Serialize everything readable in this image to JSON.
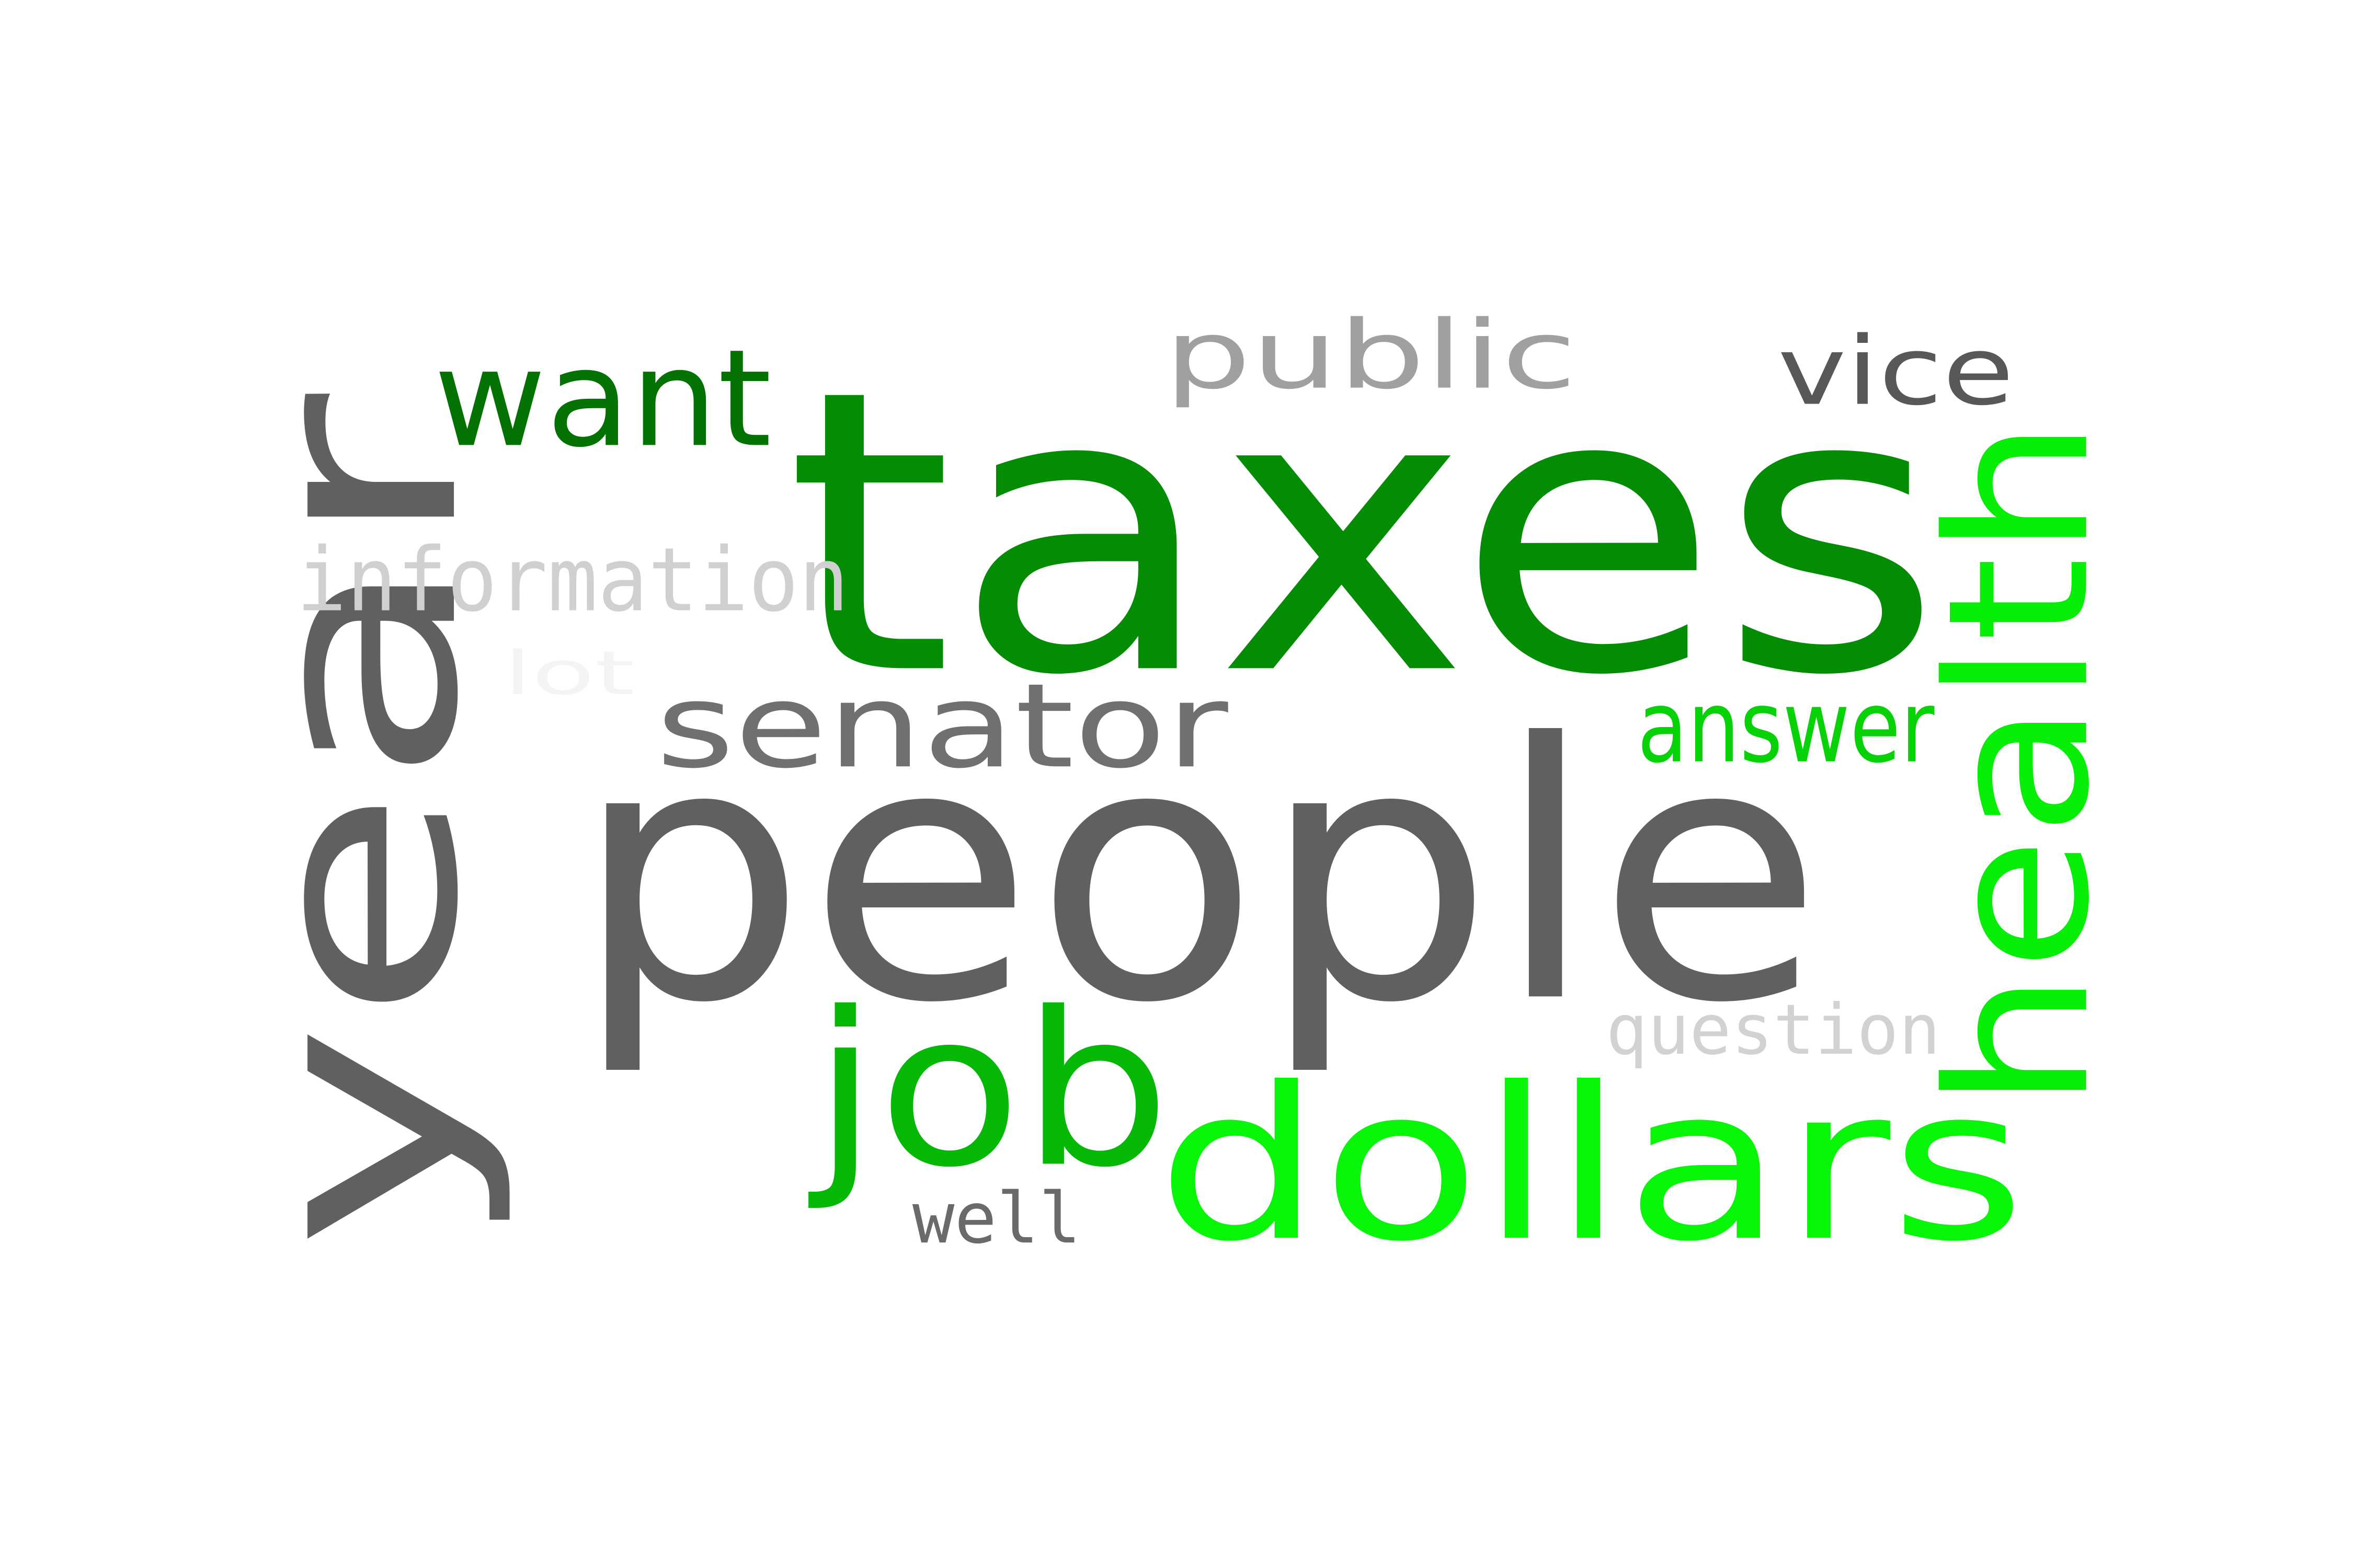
{
  "words": {
    "taxes": {
      "text": "taxes",
      "color": "#058c05"
    },
    "people": {
      "text": "people",
      "color": "#606060"
    },
    "year": {
      "text": "year",
      "color": "#606060"
    },
    "dollars": {
      "text": "dollars",
      "color": "#07f507"
    },
    "health": {
      "text": "health",
      "color": "#06ee06"
    },
    "job": {
      "text": "job",
      "color": "#06b806"
    },
    "senator": {
      "text": "senator",
      "color": "#707070"
    },
    "want": {
      "text": "want",
      "color": "#037203"
    },
    "public": {
      "text": "public",
      "color": "#a0a0a0"
    },
    "vice": {
      "text": "vice",
      "color": "#585858"
    },
    "information": {
      "text": "information",
      "color": "#d0d0d0"
    },
    "answer": {
      "text": "answer",
      "color": "#07d207"
    },
    "question": {
      "text": "question",
      "color": "#d2d2d2"
    },
    "well": {
      "text": "well",
      "color": "#6a6a6a"
    },
    "hint": {
      "text": "lot",
      "color": "#f4f4f4"
    }
  }
}
